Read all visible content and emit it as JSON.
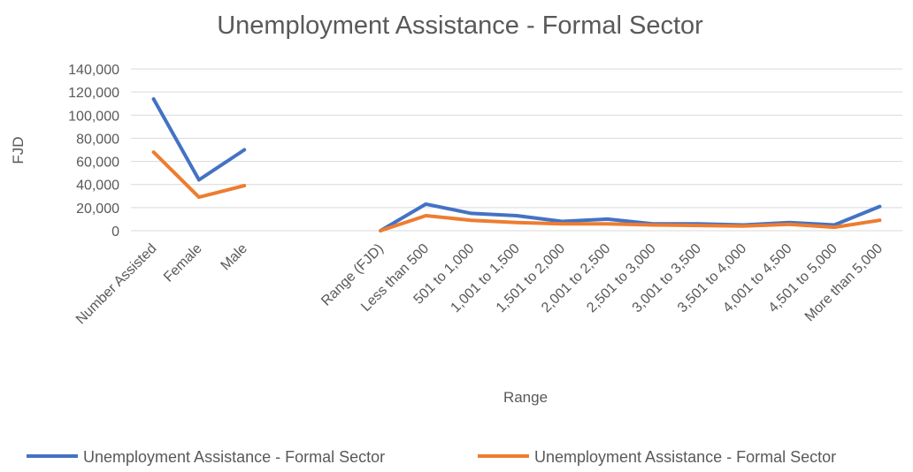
{
  "chart_data": {
    "type": "line",
    "title": "Unemployment Assistance - Formal Sector",
    "xlabel": "Range",
    "ylabel": "FJD",
    "ylim": [
      0,
      140000
    ],
    "yticks": [
      "0",
      "20,000",
      "40,000",
      "60,000",
      "80,000",
      "100,000",
      "120,000",
      "140,000"
    ],
    "ytick_values": [
      0,
      20000,
      40000,
      60000,
      80000,
      100000,
      120000,
      140000
    ],
    "grid": true,
    "legend_position": "bottom",
    "categories": [
      "Number Assisted",
      "Female",
      "Male",
      "",
      "",
      "Range (FJD)",
      "Less than 500",
      "501 to 1,000",
      "1,001 to 1,500",
      "1,501 to 2,000",
      "2,001 to 2,500",
      "2,501 to 3,000",
      "3,001 to 3,500",
      "3,501 to 4,000",
      "4,001 to 4,500",
      "4,501 to 5,000",
      "More than 5,000"
    ],
    "series": [
      {
        "name": "Unemployment Assistance - Formal Sector",
        "color": "#4472c4",
        "values": [
          114000,
          44000,
          70000,
          null,
          null,
          0,
          23000,
          15000,
          13000,
          8000,
          10000,
          6000,
          6000,
          5000,
          7000,
          5000,
          21000
        ]
      },
      {
        "name": "Unemployment Assistance - Formal Sector",
        "color": "#ed7d31",
        "values": [
          68000,
          29000,
          39000,
          null,
          null,
          0,
          13000,
          9000,
          7000,
          6000,
          6000,
          5000,
          4500,
          4000,
          5500,
          3000,
          9000
        ]
      }
    ]
  }
}
